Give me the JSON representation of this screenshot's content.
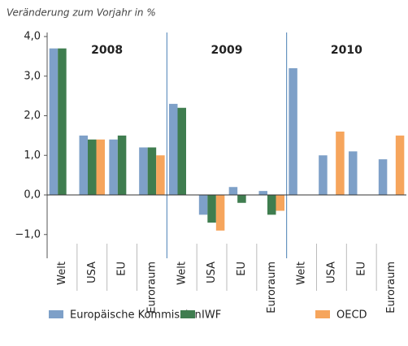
{
  "chart_data": {
    "type": "bar",
    "subtitle": "Veränderung zum Vorjahr in %",
    "categories": [
      "Welt",
      "USA",
      "EU",
      "Euroraum",
      "Welt",
      "USA",
      "EU",
      "Euroraum",
      "Welt",
      "USA",
      "EU",
      "Euroraum"
    ],
    "group_labels": [
      "2008",
      "2009",
      "2010"
    ],
    "series": [
      {
        "name": "Europäische Kommission",
        "color": "#7ea0c8",
        "values": [
          3.7,
          1.5,
          1.4,
          1.2,
          2.3,
          -0.5,
          0.2,
          0.1,
          3.2,
          1.0,
          1.1,
          0.9
        ]
      },
      {
        "name": "IWF",
        "color": "#3f7d4f",
        "values": [
          3.7,
          1.4,
          1.5,
          1.2,
          2.2,
          -0.7,
          -0.2,
          -0.5,
          null,
          null,
          null,
          null
        ]
      },
      {
        "name": "OECD",
        "color": "#f6a55c",
        "values": [
          null,
          1.4,
          null,
          1.0,
          null,
          -0.9,
          null,
          -0.4,
          null,
          1.6,
          null,
          1.5
        ]
      }
    ],
    "ylim": [
      -1.6,
      4.0
    ],
    "yticks": [
      {
        "value": 4,
        "label": "4,0"
      },
      {
        "value": 3,
        "label": "3,0"
      },
      {
        "value": 2,
        "label": "2,0"
      },
      {
        "value": 1,
        "label": "1,0"
      },
      {
        "value": 0,
        "label": "0,0"
      },
      {
        "value": -1,
        "label": "−1,0"
      }
    ],
    "legend": "bottom"
  }
}
